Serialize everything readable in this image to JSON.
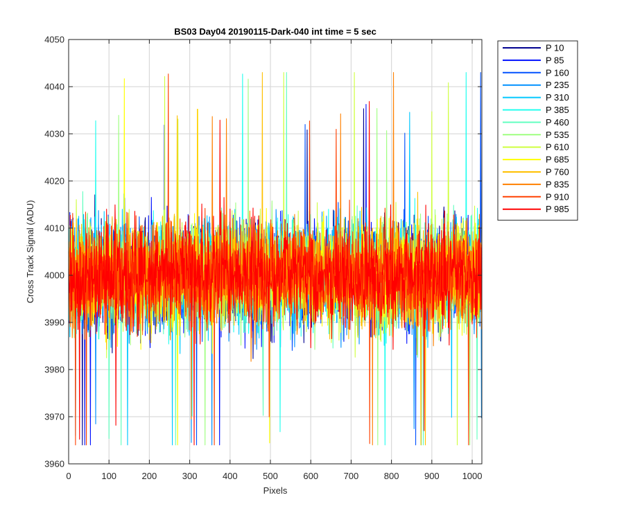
{
  "chart_data": {
    "type": "line",
    "title": "BS03 Day04 20190115-Dark-040 int time = 5 sec",
    "xlabel": "Pixels",
    "ylabel": "Cross Track Signal (ADU)",
    "xlim": [
      0,
      1024
    ],
    "ylim": [
      3960,
      4050
    ],
    "xticks": [
      0,
      100,
      200,
      300,
      400,
      500,
      600,
      700,
      800,
      900,
      1000
    ],
    "yticks": [
      3960,
      3970,
      3980,
      3990,
      4000,
      4010,
      4020,
      4030,
      4040,
      4050
    ],
    "grid": true,
    "legend_position": "outside-top-right",
    "noise": {
      "mean": 4000,
      "typical_range": [
        3985,
        4015
      ],
      "min": 3964,
      "max": 4043
    },
    "series": [
      {
        "name": "P 10",
        "color": "#00008F"
      },
      {
        "name": "P 85",
        "color": "#0010FF"
      },
      {
        "name": "P 160",
        "color": "#0050FF"
      },
      {
        "name": "P 235",
        "color": "#0090FF"
      },
      {
        "name": "P 310",
        "color": "#00C8FF"
      },
      {
        "name": "P 385",
        "color": "#20FFEF"
      },
      {
        "name": "P 460",
        "color": "#60FFBF"
      },
      {
        "name": "P 535",
        "color": "#9FFF80"
      },
      {
        "name": "P 610",
        "color": "#CFFF40"
      },
      {
        "name": "P 685",
        "color": "#FFFF00"
      },
      {
        "name": "P 760",
        "color": "#FFC000"
      },
      {
        "name": "P 835",
        "color": "#FF8000"
      },
      {
        "name": "P 910",
        "color": "#FF4000"
      },
      {
        "name": "P 985",
        "color": "#FF0000"
      }
    ]
  }
}
